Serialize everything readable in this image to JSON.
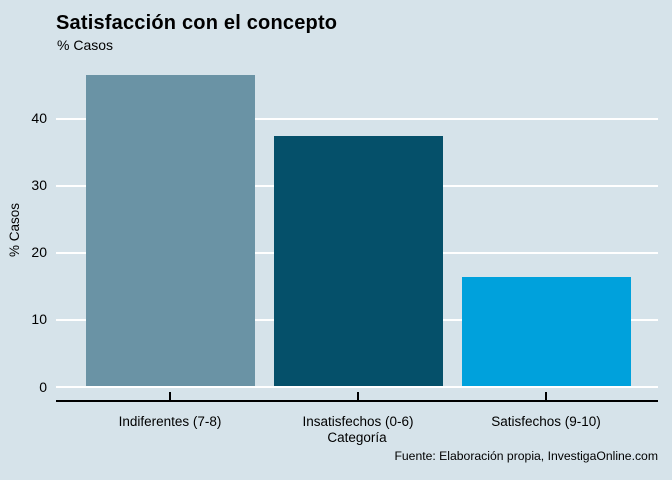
{
  "chart_data": {
    "type": "bar",
    "title": "Satisfacción con el concepto",
    "subtitle": "% Casos",
    "xlabel": "Categoría",
    "ylabel": "% Casos",
    "categories": [
      "Indiferentes (7-8)",
      "Insatisfechos (0-6)",
      "Satisfechos (9-10)"
    ],
    "values": [
      46.4,
      37.3,
      16.3
    ],
    "bar_colors": [
      "#6a93a5",
      "#05506a",
      "#00a1dc"
    ],
    "yticks": [
      0,
      10,
      20,
      30,
      40
    ],
    "ylim": [
      0,
      50
    ],
    "grid": true,
    "gridline_color": "#ffffff",
    "background_color": "#d6e3ea",
    "axis_color": "#000000",
    "legend_position": "none",
    "source": "Fuente: Elaboración propia, InvestigaOnline.com"
  }
}
